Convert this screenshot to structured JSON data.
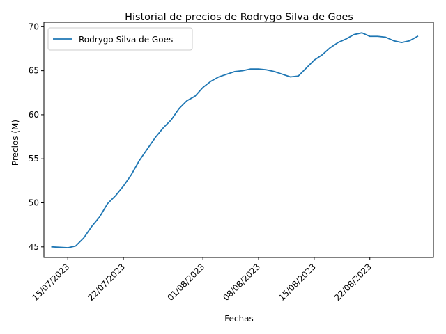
{
  "chart_data": {
    "type": "line",
    "title": "Historial de precios de Rodrygo Silva de Goes",
    "xlabel": "Fechas",
    "ylabel": "Precios (M)",
    "xlim": [
      "2023-07-12",
      "2023-08-30"
    ],
    "ylim": [
      43.8,
      70.5
    ],
    "grid": false,
    "legend_position": "upper left",
    "x_ticks": [
      {
        "date": "2023-07-15",
        "label": "15/07/2023"
      },
      {
        "date": "2023-07-22",
        "label": "22/07/2023"
      },
      {
        "date": "2023-08-01",
        "label": "01/08/2023"
      },
      {
        "date": "2023-08-08",
        "label": "08/08/2023"
      },
      {
        "date": "2023-08-15",
        "label": "15/08/2023"
      },
      {
        "date": "2023-08-22",
        "label": "22/08/2023"
      }
    ],
    "y_ticks": [
      {
        "value": 45,
        "label": "45"
      },
      {
        "value": 50,
        "label": "50"
      },
      {
        "value": 55,
        "label": "55"
      },
      {
        "value": 60,
        "label": "60"
      },
      {
        "value": 65,
        "label": "65"
      },
      {
        "value": 70,
        "label": "70"
      }
    ],
    "series": [
      {
        "name": "Rodrygo Silva de Goes",
        "color": "#1f77b4",
        "x": [
          "2023-07-13",
          "2023-07-14",
          "2023-07-15",
          "2023-07-16",
          "2023-07-17",
          "2023-07-18",
          "2023-07-19",
          "2023-07-20",
          "2023-07-21",
          "2023-07-22",
          "2023-07-23",
          "2023-07-24",
          "2023-07-25",
          "2023-07-26",
          "2023-07-27",
          "2023-07-28",
          "2023-07-29",
          "2023-07-30",
          "2023-07-31",
          "2023-08-01",
          "2023-08-02",
          "2023-08-03",
          "2023-08-04",
          "2023-08-05",
          "2023-08-06",
          "2023-08-07",
          "2023-08-08",
          "2023-08-09",
          "2023-08-10",
          "2023-08-11",
          "2023-08-12",
          "2023-08-13",
          "2023-08-14",
          "2023-08-15",
          "2023-08-16",
          "2023-08-17",
          "2023-08-18",
          "2023-08-19",
          "2023-08-20",
          "2023-08-21",
          "2023-08-22",
          "2023-08-23",
          "2023-08-24",
          "2023-08-25",
          "2023-08-26",
          "2023-08-27",
          "2023-08-28"
        ],
        "y": [
          45.0,
          44.95,
          44.9,
          45.1,
          46.0,
          47.3,
          48.4,
          49.9,
          50.8,
          51.9,
          53.2,
          54.8,
          56.1,
          57.4,
          58.5,
          59.4,
          60.7,
          61.6,
          62.1,
          63.1,
          63.8,
          64.3,
          64.6,
          64.9,
          65.0,
          65.2,
          65.2,
          65.1,
          64.9,
          64.6,
          64.3,
          64.4,
          65.3,
          66.2,
          66.8,
          67.6,
          68.2,
          68.6,
          69.1,
          69.3,
          68.9,
          68.9,
          68.8,
          68.4,
          68.2,
          68.4,
          68.9
        ]
      }
    ]
  }
}
